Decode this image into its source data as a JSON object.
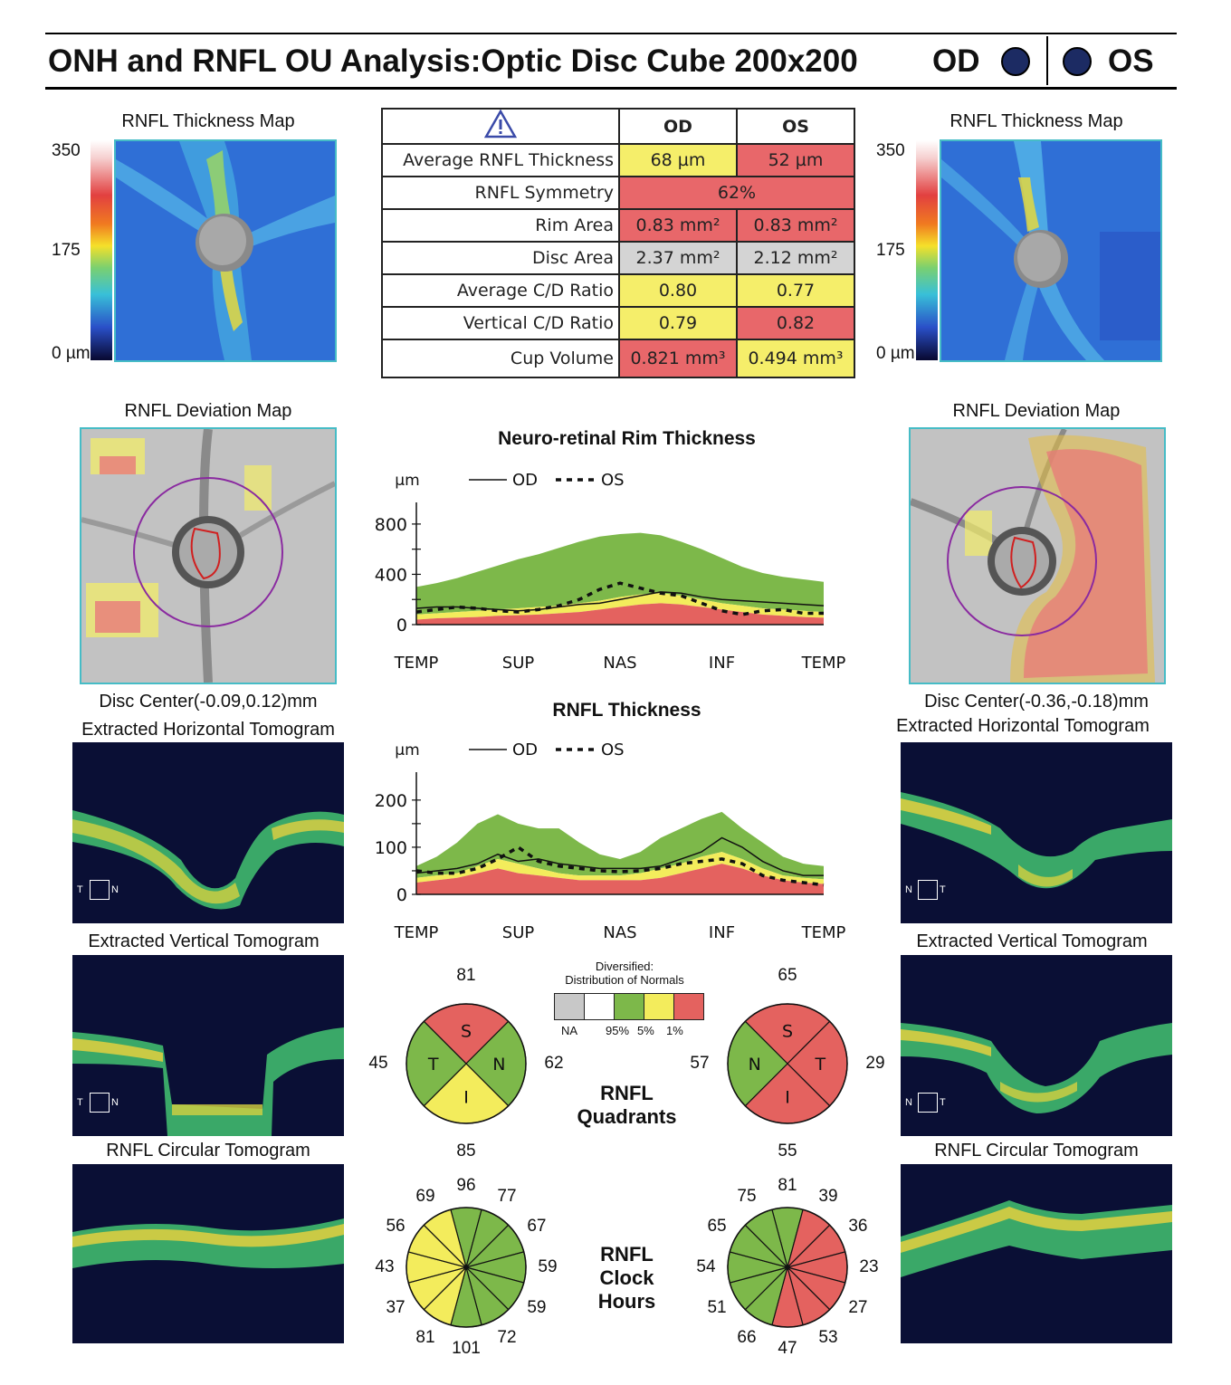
{
  "header": {
    "title": "ONH and RNFL OU Analysis:Optic Disc Cube 200x200",
    "od": "OD",
    "os": "OS"
  },
  "od_panel": {
    "thickness_map_title": "RNFL Thickness Map",
    "scale_top": "350",
    "scale_mid": "175",
    "scale_bottom": "0 µm",
    "deviation_map_title": "RNFL Deviation Map",
    "disc_center": "Disc Center(-0.09,0.12)mm",
    "horizontal_tomogram_title": "Extracted Horizontal Tomogram",
    "horizontal_marker": [
      "T",
      "N"
    ],
    "vertical_tomogram_title": "Extracted Vertical Tomogram",
    "vertical_marker": [
      "T",
      "N"
    ],
    "circular_tomogram_title": "RNFL Circular Tomogram"
  },
  "os_panel": {
    "thickness_map_title": "RNFL Thickness Map",
    "scale_top": "350",
    "scale_mid": "175",
    "scale_bottom": "0 µm",
    "deviation_map_title": "RNFL Deviation Map",
    "disc_center": "Disc Center(-0.36,-0.18)mm",
    "horizontal_tomogram_title": "Extracted Horizontal Tomogram",
    "horizontal_marker": [
      "N",
      "T"
    ],
    "vertical_tomogram_title": "Extracted Vertical Tomogram",
    "vertical_marker": [
      "N",
      "T"
    ],
    "circular_tomogram_title": "RNFL Circular Tomogram"
  },
  "colors": {
    "normal": "#7db84a",
    "borderline": "#f3ec5c",
    "outside": "#e4625f",
    "na": "#c8c8c8",
    "eye_dot": "#1c2b63",
    "map_border": "#46bcc6"
  },
  "summary_table": {
    "col_od": "OD",
    "col_os": "OS",
    "rows": [
      {
        "label": "Average RNFL Thickness",
        "od": "68 µm",
        "os": "52 µm",
        "od_color": "yellow",
        "os_color": "red"
      },
      {
        "label": "RNFL Symmetry",
        "both": "62%",
        "color": "red"
      },
      {
        "label": "Rim Area",
        "od": "0.83 mm²",
        "os": "0.83 mm²",
        "od_color": "red",
        "os_color": "red"
      },
      {
        "label": "Disc Area",
        "od": "2.37 mm²",
        "os": "2.12 mm²",
        "od_color": "gray",
        "os_color": "gray"
      },
      {
        "label": "Average C/D Ratio",
        "od": "0.80",
        "os": "0.77",
        "od_color": "yellow",
        "os_color": "yellow"
      },
      {
        "label": "Vertical C/D Ratio",
        "od": "0.79",
        "os": "0.82",
        "od_color": "yellow",
        "os_color": "red"
      },
      {
        "label": "Cup Volume",
        "od": "0.821 mm³",
        "os": "0.494 mm³",
        "od_color": "red",
        "os_color": "yellow"
      }
    ]
  },
  "legend_od": "OD",
  "legend_os": "OS",
  "normative_legend": {
    "title_1": "Diversified:",
    "title_2": "Distribution of Normals",
    "labels": [
      "NA",
      "95%",
      "5%",
      "1%"
    ]
  },
  "quadrants_label": [
    "RNFL",
    "Quadrants"
  ],
  "clock_label": [
    "RNFL",
    "Clock",
    "Hours"
  ],
  "chart_data": [
    {
      "type": "area",
      "title": "Neuro-retinal Rim Thickness",
      "ylabel": "µm",
      "ylim": [
        0,
        900
      ],
      "yticks": [
        0,
        400,
        800
      ],
      "categories": [
        "TEMP",
        "SUP",
        "NAS",
        "INF",
        "TEMP"
      ],
      "x": [
        0,
        0.05,
        0.1,
        0.15,
        0.2,
        0.25,
        0.3,
        0.35,
        0.4,
        0.45,
        0.5,
        0.55,
        0.6,
        0.65,
        0.7,
        0.75,
        0.8,
        0.85,
        0.9,
        0.95,
        1.0
      ],
      "bands": {
        "p1": [
          40,
          50,
          55,
          60,
          70,
          75,
          80,
          90,
          100,
          120,
          140,
          160,
          170,
          160,
          140,
          120,
          100,
          80,
          70,
          60,
          55
        ],
        "p5": [
          80,
          90,
          100,
          110,
          120,
          130,
          140,
          150,
          170,
          190,
          220,
          240,
          250,
          230,
          200,
          170,
          150,
          130,
          120,
          110,
          100
        ],
        "p95": [
          300,
          330,
          370,
          420,
          470,
          520,
          560,
          610,
          660,
          700,
          720,
          730,
          710,
          660,
          600,
          530,
          460,
          410,
          380,
          360,
          340
        ]
      },
      "series": [
        {
          "name": "OD",
          "values": [
            130,
            140,
            140,
            130,
            120,
            110,
            120,
            140,
            160,
            170,
            200,
            230,
            260,
            250,
            220,
            200,
            190,
            180,
            170,
            160,
            150
          ]
        },
        {
          "name": "OS",
          "values": [
            100,
            120,
            140,
            130,
            110,
            100,
            120,
            150,
            200,
            280,
            330,
            290,
            250,
            230,
            170,
            110,
            80,
            110,
            120,
            90,
            90
          ]
        }
      ]
    },
    {
      "type": "area",
      "title": "RNFL Thickness",
      "ylabel": "µm",
      "ylim": [
        0,
        240
      ],
      "yticks": [
        0,
        100,
        200
      ],
      "categories": [
        "TEMP",
        "SUP",
        "NAS",
        "INF",
        "TEMP"
      ],
      "x": [
        0,
        0.05,
        0.1,
        0.15,
        0.2,
        0.25,
        0.3,
        0.35,
        0.4,
        0.45,
        0.5,
        0.55,
        0.6,
        0.65,
        0.7,
        0.75,
        0.8,
        0.85,
        0.9,
        0.95,
        1.0
      ],
      "bands": {
        "p1": [
          25,
          30,
          35,
          45,
          55,
          45,
          40,
          35,
          30,
          30,
          30,
          30,
          35,
          45,
          55,
          65,
          55,
          40,
          30,
          25,
          22
        ],
        "p5": [
          35,
          40,
          45,
          60,
          75,
          65,
          55,
          45,
          40,
          40,
          40,
          45,
          55,
          65,
          80,
          90,
          75,
          55,
          40,
          35,
          32
        ],
        "p95": [
          60,
          80,
          110,
          150,
          170,
          150,
          140,
          140,
          110,
          85,
          75,
          90,
          120,
          140,
          160,
          175,
          140,
          110,
          80,
          65,
          60
        ]
      },
      "series": [
        {
          "name": "OD",
          "values": [
            45,
            50,
            55,
            65,
            85,
            70,
            75,
            65,
            60,
            55,
            55,
            55,
            60,
            75,
            90,
            120,
            100,
            70,
            50,
            40,
            40
          ]
        },
        {
          "name": "OS",
          "values": [
            50,
            45,
            45,
            55,
            75,
            100,
            70,
            60,
            55,
            50,
            48,
            50,
            55,
            65,
            70,
            75,
            65,
            40,
            30,
            25,
            20
          ]
        }
      ]
    },
    {
      "type": "pie",
      "title": "OD RNFL Quadrants",
      "labels": [
        "S",
        "N",
        "I",
        "T"
      ],
      "values": [
        81,
        62,
        85,
        45
      ],
      "colors": [
        "red",
        "green",
        "yellow",
        "green"
      ]
    },
    {
      "type": "pie",
      "title": "OS RNFL Quadrants",
      "labels": [
        "S",
        "T",
        "I",
        "N"
      ],
      "values": [
        65,
        29,
        55,
        57
      ],
      "colors": [
        "red",
        "red",
        "red",
        "green"
      ]
    },
    {
      "type": "pie",
      "title": "OD RNFL Clock Hours",
      "labels": [
        "12",
        "1",
        "2",
        "3",
        "4",
        "5",
        "6",
        "7",
        "8",
        "9",
        "10",
        "11"
      ],
      "values": [
        96,
        77,
        67,
        59,
        59,
        72,
        101,
        81,
        37,
        43,
        56,
        69
      ],
      "colors": [
        "green",
        "green",
        "green",
        "green",
        "green",
        "green",
        "green",
        "yellow",
        "yellow",
        "yellow",
        "yellow",
        "yellow"
      ]
    },
    {
      "type": "pie",
      "title": "OS RNFL Clock Hours",
      "labels": [
        "12",
        "1",
        "2",
        "3",
        "4",
        "5",
        "6",
        "7",
        "8",
        "9",
        "10",
        "11"
      ],
      "values": [
        81,
        39,
        36,
        23,
        27,
        53,
        47,
        66,
        51,
        54,
        65,
        75
      ],
      "colors": [
        "green",
        "red",
        "red",
        "red",
        "red",
        "red",
        "red",
        "green",
        "green",
        "green",
        "green",
        "green"
      ]
    }
  ]
}
